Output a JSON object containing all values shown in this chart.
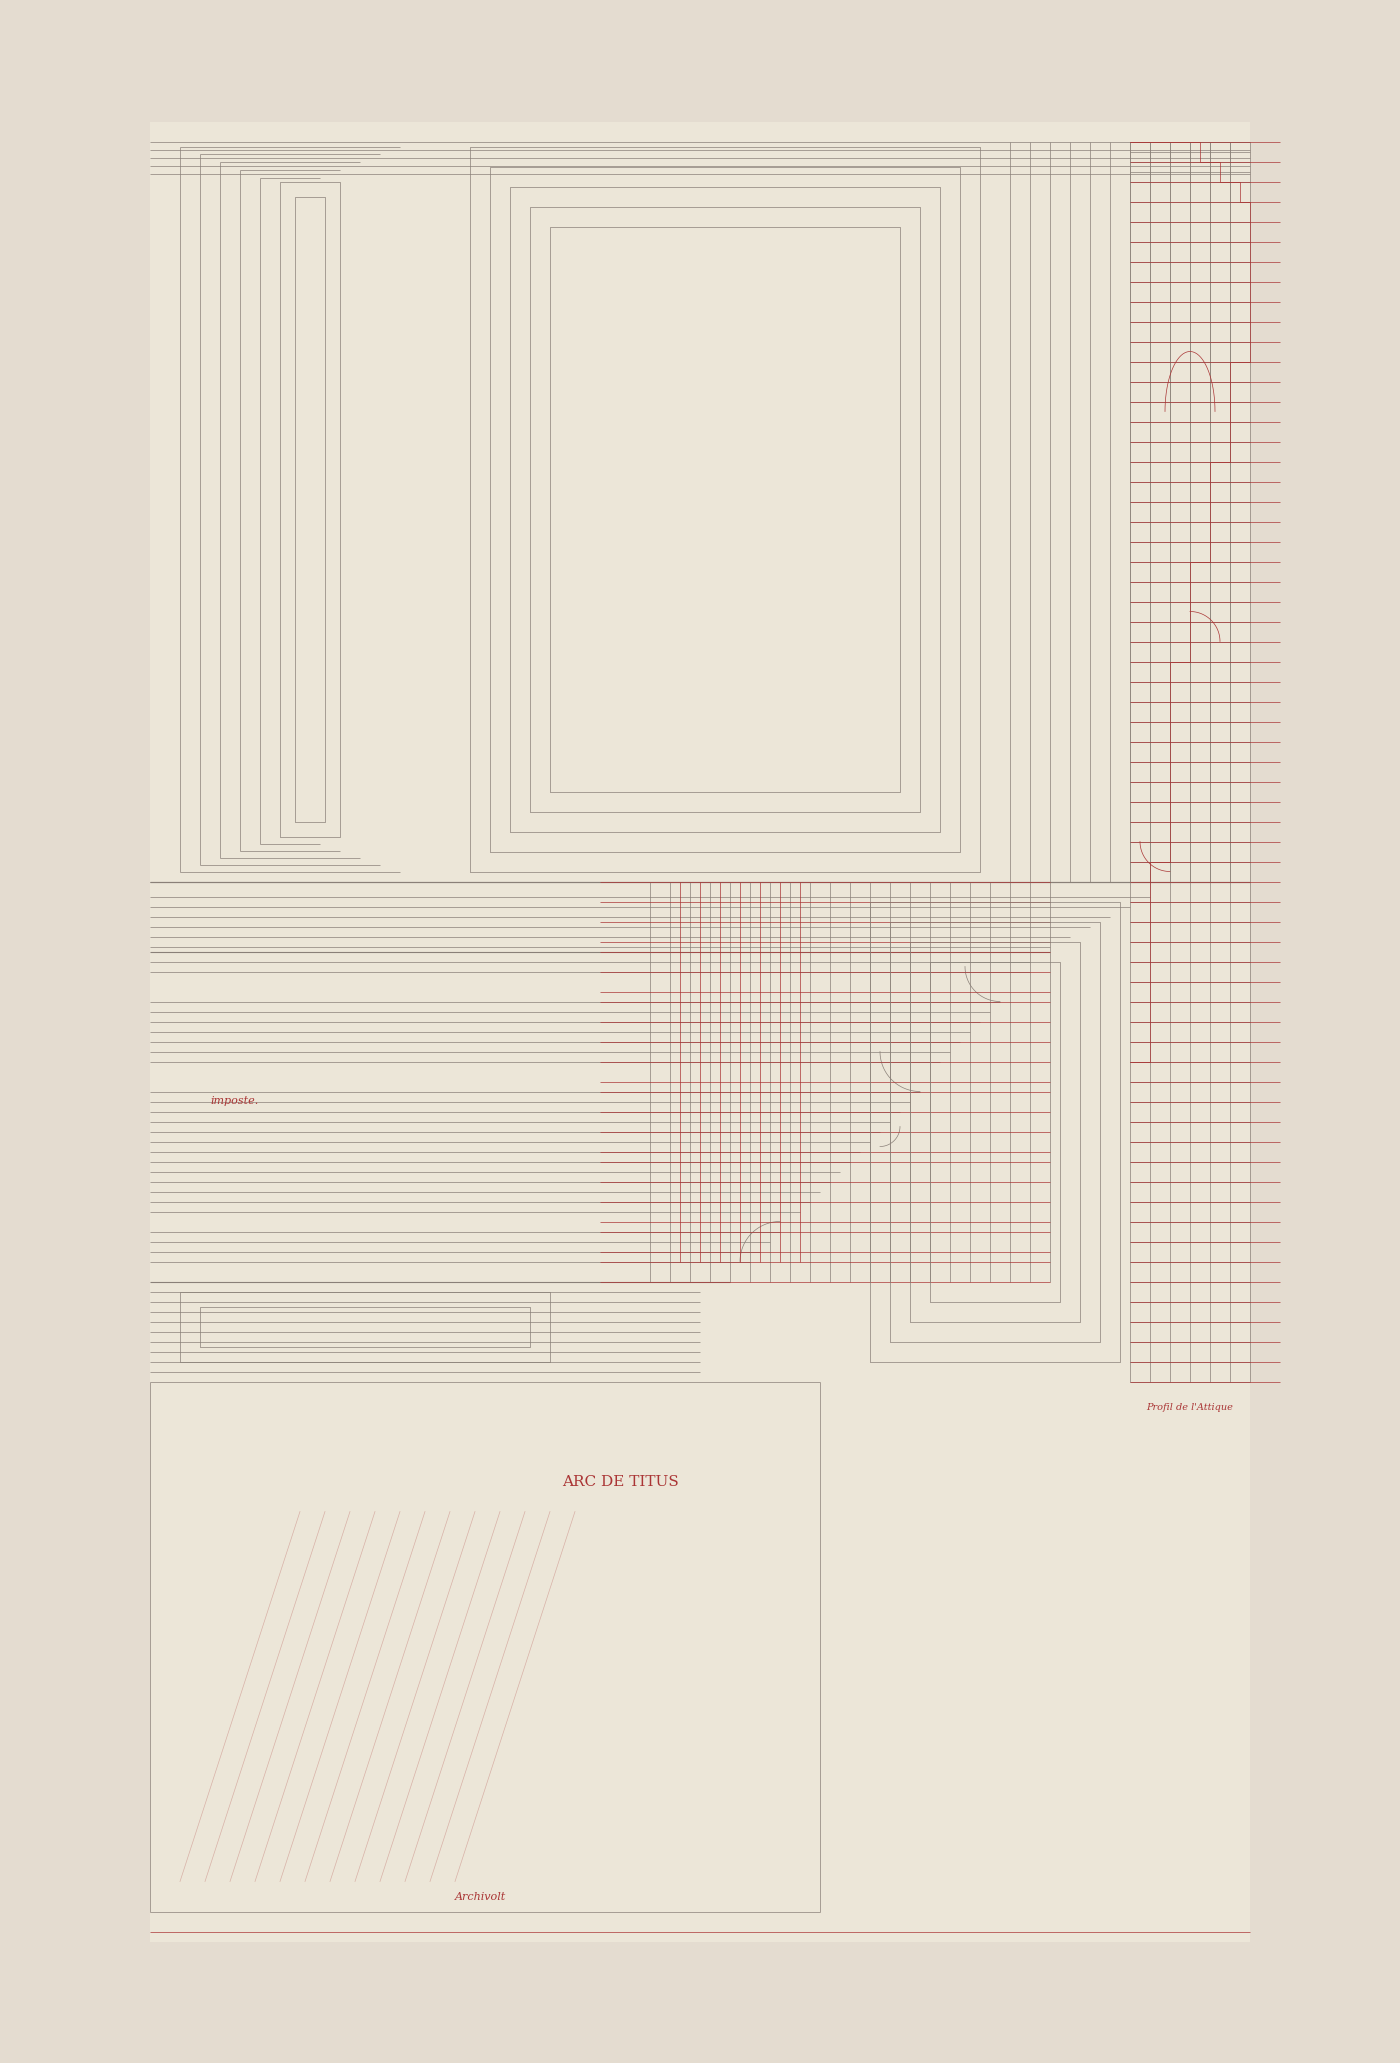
{
  "page_bg": "#e4dcd0",
  "paper_bg": "#ece6d8",
  "line_dark": "#8a8078",
  "line_red": "#aa3535",
  "title_text": "ARC DE TITUS",
  "label_imposte": "imposte.",
  "label_archivolt": "Archivolt",
  "label_profil": "Profil de l'Attique",
  "fig_width": 14.0,
  "fig_height": 20.63,
  "dpi": 100,
  "lw_thin": 0.5,
  "lw_med": 0.8,
  "lw_thick": 1.2,
  "title_fontsize": 9,
  "label_fontsize": 7
}
